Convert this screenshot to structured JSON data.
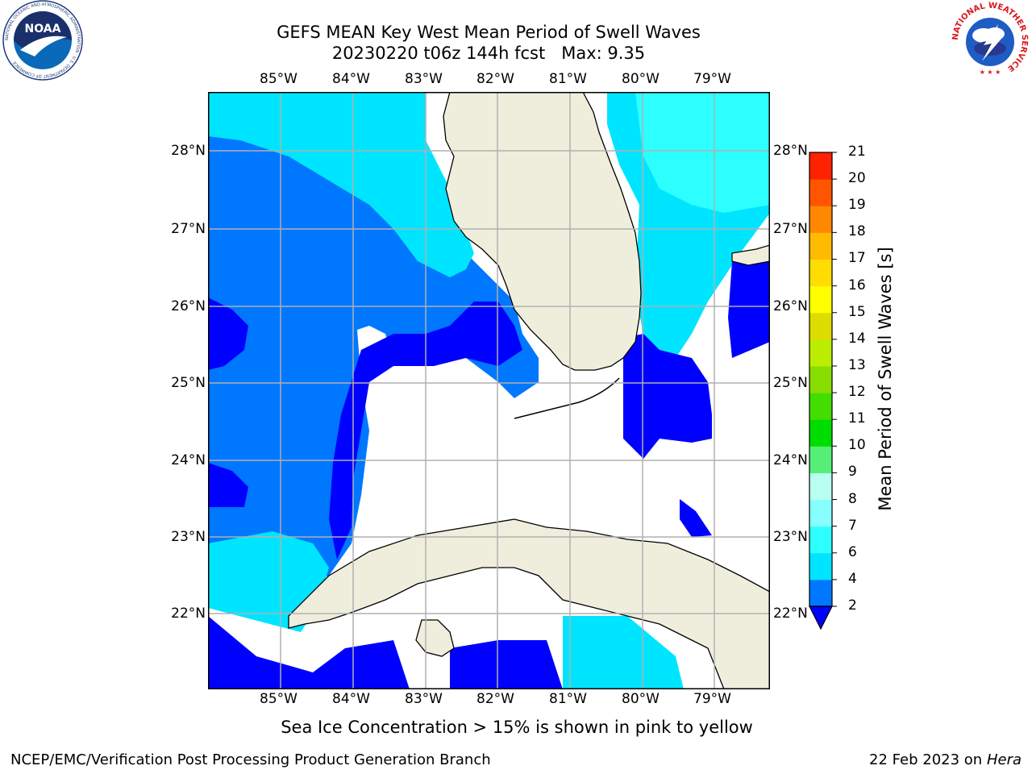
{
  "title": {
    "line1": "GEFS MEAN Key West Mean Period of Swell Waves",
    "date_run": "20230220 t06z 144h fcst",
    "max": "Max: 9.35"
  },
  "map": {
    "lon_labels": [
      "85°W",
      "84°W",
      "83°W",
      "82°W",
      "81°W",
      "80°W",
      "79°W"
    ],
    "lat_labels": [
      "28°N",
      "27°N",
      "26°N",
      "25°N",
      "24°N",
      "23°N",
      "22°N"
    ],
    "colors": {
      "land": "#efeedd",
      "no_data": "#ffffff",
      "gridlines": "#b0b0b0",
      "coastline": "#000000"
    }
  },
  "colorbar": {
    "title": "Mean Period of Swell Waves [s]",
    "ticks": [
      "2",
      "4",
      "6",
      "7",
      "8",
      "9",
      "10",
      "11",
      "12",
      "13",
      "14",
      "15",
      "16",
      "17",
      "18",
      "19",
      "20",
      "21"
    ],
    "colors": [
      "#0000ff",
      "#0077ff",
      "#00e5ff",
      "#2dffff",
      "#88ffff",
      "#b8fff0",
      "#55ee77",
      "#00dd00",
      "#44dd00",
      "#88dd00",
      "#bbee00",
      "#dddd00",
      "#ffff00",
      "#ffdd00",
      "#ffbb00",
      "#ff8800",
      "#ff5500",
      "#ff2200",
      "#ff0000"
    ]
  },
  "footer": {
    "ice_note": "Sea Ice Concentration > 15% is shown in pink to yellow",
    "branch": "NCEP/EMC/Verification Post Processing Product Generation Branch",
    "date": "22 Feb 2023 on",
    "host": "Hera"
  },
  "logos": {
    "noaa_text": "NOAA",
    "noaa_ring": "NATIONAL OCEANIC AND ATMOSPHERIC ADMINISTRATION · U.S. DEPARTMENT OF COMMERCE",
    "nws_ring": "NATIONAL WEATHER SERVICE"
  }
}
